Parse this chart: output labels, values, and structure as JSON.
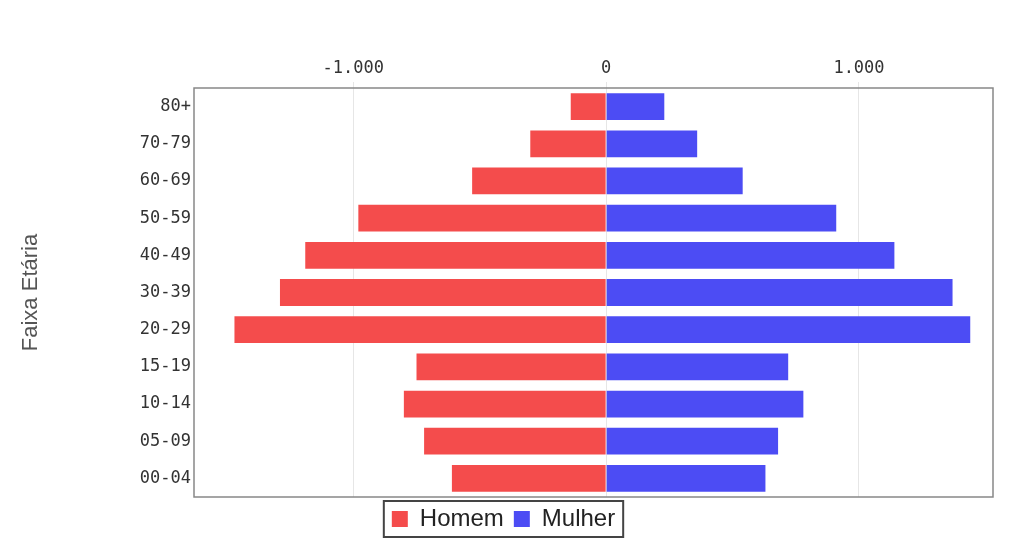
{
  "chart_data": {
    "type": "bar",
    "orientation": "horizontal",
    "stacked": true,
    "ylabel": "Faixa Etária",
    "categories": [
      "80+",
      "70-79",
      "60-69",
      "50-59",
      "40-49",
      "30-39",
      "20-29",
      "15-19",
      "10-14",
      "05-09",
      "00-04"
    ],
    "series": [
      {
        "name": "Homem",
        "color": "#f44c4c",
        "values": [
          -140,
          -300,
          -530,
          -980,
          -1190,
          -1290,
          -1470,
          -750,
          -800,
          -720,
          -610
        ]
      },
      {
        "name": "Mulher",
        "color": "#4c4cf4",
        "values": [
          230,
          360,
          540,
          910,
          1140,
          1370,
          1440,
          720,
          780,
          680,
          630
        ]
      }
    ],
    "xlim": [
      -1630,
      1530
    ],
    "xticks": [
      {
        "value": -1000,
        "label": "-1.000"
      },
      {
        "value": 0,
        "label": "0"
      },
      {
        "value": 1000,
        "label": "1.000"
      }
    ],
    "grid": "x",
    "legend": "bottom"
  }
}
